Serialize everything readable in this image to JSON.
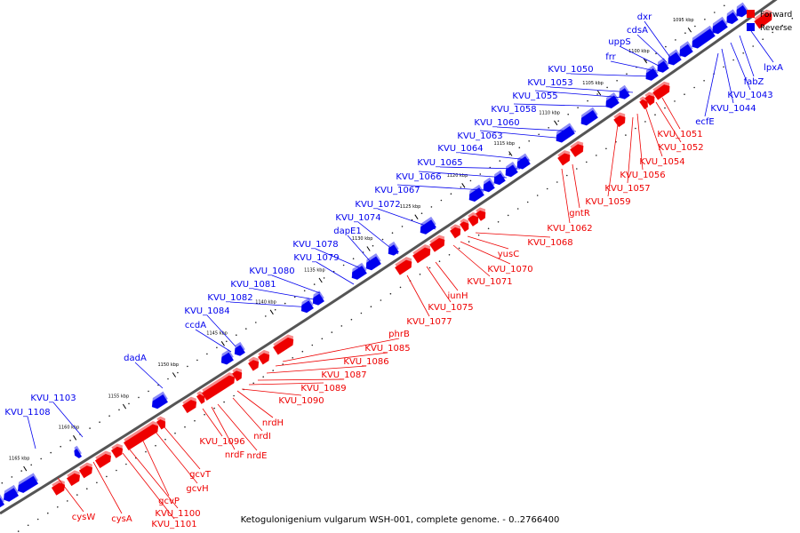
{
  "caption": "Ketogulonigenium vulgarum WSH-001, complete genome. - 0..2766400",
  "legend": [
    {
      "label": "Forward",
      "color": "#ee0000"
    },
    {
      "label": "Reverse",
      "color": "#0000ee"
    }
  ],
  "colors": {
    "forward": "#ee0000",
    "reverse": "#0000ee",
    "backbone": "#555555"
  },
  "ticks": [
    "1095 kbp",
    "1100 kbp",
    "1105 kbp",
    "1110 kbp",
    "1115 kbp",
    "1120 kbp",
    "1125 kbp",
    "1130 kbp",
    "1135 kbp",
    "1140 kbp",
    "1145 kbp",
    "1150 kbp",
    "1155 kbp",
    "1160 kbp",
    "1165 kbp"
  ],
  "reverse_labels": [
    "dxr",
    "cdsA",
    "uppS",
    "frr",
    "KVU_1050",
    "KVU_1053",
    "KVU_1055",
    "KVU_1058",
    "KVU_1060",
    "KVU_1063",
    "KVU_1064",
    "KVU_1065",
    "KVU_1066",
    "KVU_1067",
    "KVU_1072",
    "KVU_1074",
    "dapE1",
    "KVU_1078",
    "KVU_1079",
    "KVU_1080",
    "KVU_1081",
    "KVU_1082",
    "KVU_1084",
    "ccdA",
    "dadA",
    "KVU_1103",
    "KVU_1108",
    "lpxA",
    "fabZ",
    "KVU_1043",
    "KVU_1044",
    "ecfE"
  ],
  "forward_labels": [
    "KVU_1051",
    "KVU_1052",
    "KVU_1054",
    "KVU_1056",
    "KVU_1057",
    "KVU_1059",
    "gntR",
    "KVU_1062",
    "KVU_1068",
    "yusC",
    "KVU_1070",
    "KVU_1071",
    "iunH",
    "KVU_1075",
    "KVU_1077",
    "phrB",
    "KVU_1085",
    "KVU_1086",
    "KVU_1087",
    "KVU_1089",
    "KVU_1090",
    "nrdH",
    "nrdI",
    "nrdE",
    "nrdF",
    "KVU_1096",
    "gcvT",
    "gcvH",
    "gcvP",
    "KVU_1100",
    "KVU_1101",
    "cysA",
    "cysW"
  ]
}
